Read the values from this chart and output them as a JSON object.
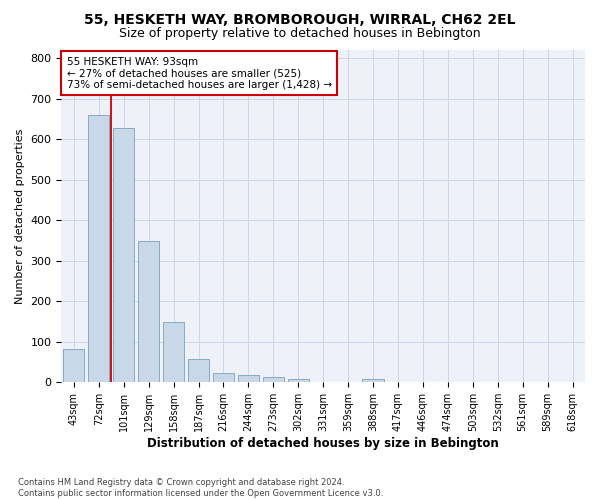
{
  "title": "55, HESKETH WAY, BROMBOROUGH, WIRRAL, CH62 2EL",
  "subtitle": "Size of property relative to detached houses in Bebington",
  "xlabel": "Distribution of detached houses by size in Bebington",
  "ylabel": "Number of detached properties",
  "footnote": "Contains HM Land Registry data © Crown copyright and database right 2024.\nContains public sector information licensed under the Open Government Licence v3.0.",
  "bar_labels": [
    "43sqm",
    "72sqm",
    "101sqm",
    "129sqm",
    "158sqm",
    "187sqm",
    "216sqm",
    "244sqm",
    "273sqm",
    "302sqm",
    "331sqm",
    "359sqm",
    "388sqm",
    "417sqm",
    "446sqm",
    "474sqm",
    "503sqm",
    "532sqm",
    "561sqm",
    "589sqm",
    "618sqm"
  ],
  "bar_values": [
    83,
    660,
    628,
    348,
    148,
    57,
    22,
    18,
    14,
    9,
    0,
    0,
    8,
    0,
    0,
    0,
    0,
    0,
    0,
    0,
    0
  ],
  "bar_color": "#c8d8e8",
  "bar_edge_color": "#7aa0be",
  "grid_color": "#ccd6e8",
  "background_color": "#eef2f8",
  "annotation_line1": "55 HESKETH WAY: 93sqm",
  "annotation_line2": "← 27% of detached houses are smaller (525)",
  "annotation_line3": "73% of semi-detached houses are larger (1,428) →",
  "annotation_box_color": "#ffffff",
  "annotation_border_color": "#cc0000",
  "vline_color": "#cc0000",
  "vline_x": 1.5,
  "ylim": [
    0,
    820
  ],
  "yticks": [
    0,
    100,
    200,
    300,
    400,
    500,
    600,
    700,
    800
  ]
}
